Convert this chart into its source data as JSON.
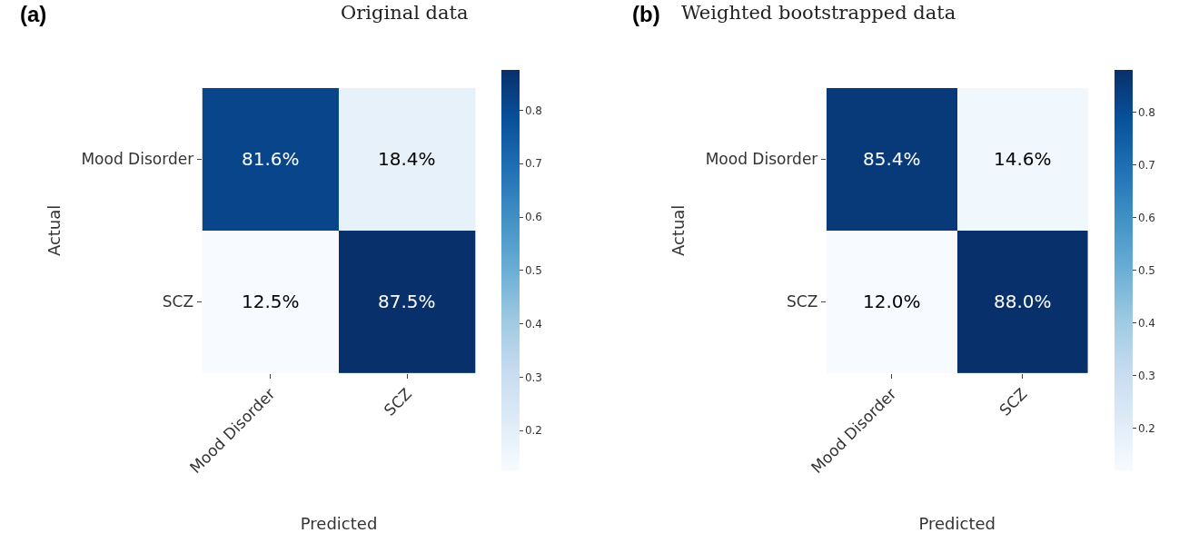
{
  "chart_data": [
    {
      "type": "heatmap",
      "title": "Original data",
      "xlabel": "Predicted",
      "ylabel": "Actual",
      "annotations": [
        "(a)"
      ],
      "categories": [
        "Mood Disorder",
        "SCZ"
      ],
      "y_categories": [
        "Mood Disorder",
        "SCZ"
      ],
      "cells": [
        [
          0.816,
          0.184
        ],
        [
          0.125,
          0.875
        ]
      ],
      "cell_labels": [
        [
          "81.6%",
          "18.4%"
        ],
        [
          "12.5%",
          "87.5%"
        ]
      ],
      "clim": [
        0.125,
        0.875
      ],
      "cticks": [
        0.2,
        0.3,
        0.4,
        0.5,
        0.6,
        0.7,
        0.8
      ]
    },
    {
      "type": "heatmap",
      "title": "Weighted bootstrapped data",
      "xlabel": "Predicted",
      "ylabel": "Actual",
      "annotations": [
        "(b)"
      ],
      "categories": [
        "Mood Disorder",
        "SCZ"
      ],
      "y_categories": [
        "Mood Disorder",
        "SCZ"
      ],
      "cells": [
        [
          0.854,
          0.146
        ],
        [
          0.12,
          0.88
        ]
      ],
      "cell_labels": [
        [
          "85.4%",
          "14.6%"
        ],
        [
          "12.0%",
          "88.0%"
        ]
      ],
      "clim": [
        0.12,
        0.88
      ],
      "cticks": [
        0.2,
        0.3,
        0.4,
        0.5,
        0.6,
        0.7,
        0.8
      ]
    }
  ]
}
